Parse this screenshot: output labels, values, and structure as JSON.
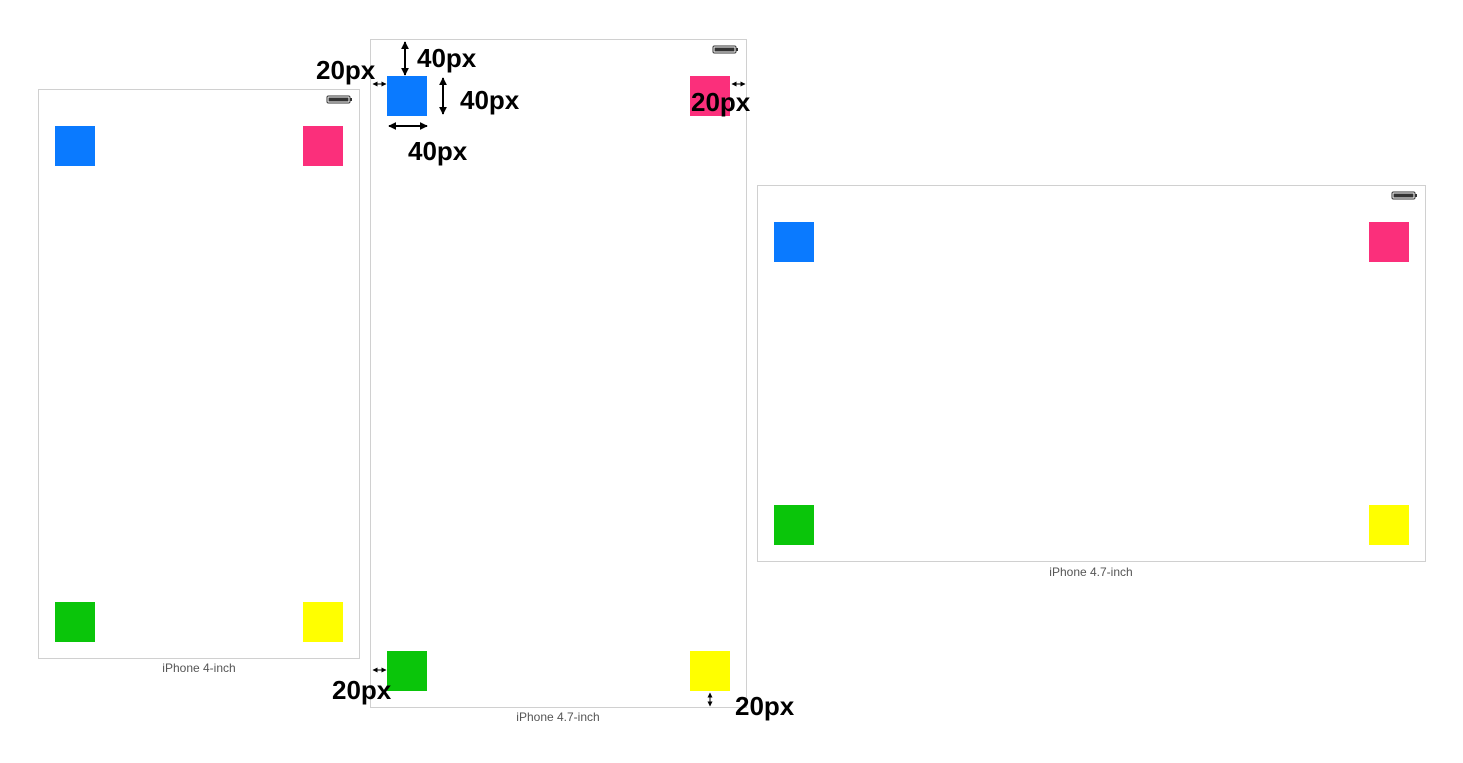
{
  "devices": [
    {
      "label": "iPhone 4-inch"
    },
    {
      "label": "iPhone 4.7-inch"
    },
    {
      "label": "iPhone 4.7-inch"
    }
  ],
  "annotations": [
    "20px",
    "40px",
    "40px",
    "40px",
    "20px",
    "20px",
    "20px"
  ]
}
